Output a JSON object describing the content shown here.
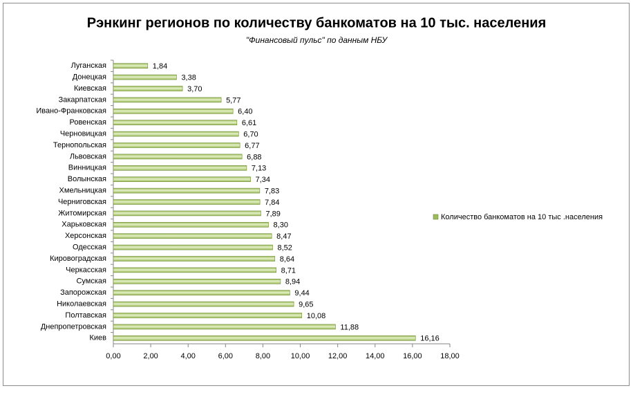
{
  "chart_data": {
    "type": "hbar",
    "title": "Рэнкинг регионов по количеству банкоматов на 10 тыс. населения",
    "subtitle": "\"Финансовый пульс\" по данным НБУ",
    "categories": [
      "Луганская",
      "Донецкая",
      "Киевская",
      "Закарпатская",
      "Ивано-Франковская",
      "Ровенская",
      "Черновицкая",
      "Тернопольская",
      "Львовская",
      "Винницкая",
      "Волынская",
      "Хмельницкая",
      "Черниговская",
      "Житомирская",
      "Харьковская",
      "Херсонская",
      "Одесская",
      "Кировоградская",
      "Черкасская",
      "Сумская",
      "Запорожская",
      "Николаевская",
      "Полтавская",
      "Днепропетровская",
      "Киев"
    ],
    "series": [
      {
        "name": "Количество банкоматов на 10 тыс .населения",
        "color": "#9bbb59",
        "values": [
          1.84,
          3.38,
          3.7,
          5.77,
          6.4,
          6.61,
          6.7,
          6.77,
          6.88,
          7.13,
          7.34,
          7.83,
          7.84,
          7.89,
          8.3,
          8.47,
          8.52,
          8.64,
          8.71,
          8.94,
          9.44,
          9.65,
          10.08,
          11.88,
          16.16
        ],
        "value_labels": [
          "1,84",
          "3,38",
          "3,70",
          "5,77",
          "6,40",
          "6,61",
          "6,70",
          "6,77",
          "6,88",
          "7,13",
          "7,34",
          "7,83",
          "7,84",
          "7,89",
          "8,30",
          "8,47",
          "8,52",
          "8,64",
          "8,71",
          "8,94",
          "9,44",
          "9,65",
          "10,08",
          "11,88",
          "16,16"
        ]
      }
    ],
    "xlim": [
      0,
      18
    ],
    "xticks": [
      {
        "value": 0,
        "label": "0,00"
      },
      {
        "value": 2,
        "label": "2,00"
      },
      {
        "value": 4,
        "label": "4,00"
      },
      {
        "value": 6,
        "label": "6,00"
      },
      {
        "value": 8,
        "label": "8,00"
      },
      {
        "value": 10,
        "label": "10,00"
      },
      {
        "value": 12,
        "label": "12,00"
      },
      {
        "value": 14,
        "label": "14,00"
      },
      {
        "value": 16,
        "label": "16,00"
      },
      {
        "value": 18,
        "label": "18,00"
      }
    ],
    "legend": "right"
  }
}
